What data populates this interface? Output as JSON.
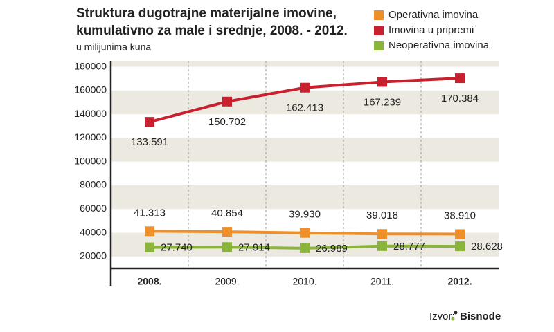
{
  "chart_data": {
    "type": "line",
    "title": [
      "Struktura dugotrajne materijalne imovine,",
      "kumulativno za male i srednje, 2008. - 2012."
    ],
    "subtitle": "u milijunima kuna",
    "categories": [
      "2008.",
      "2009.",
      "2010.",
      "2011.",
      "2012."
    ],
    "series": [
      {
        "name": "Operativna imovina",
        "color": "#ef8f2a",
        "values": [
          41313,
          40854,
          39930,
          39018,
          38910
        ],
        "value_labels": [
          "41.313",
          "40.854",
          "39.930",
          "39.018",
          "38.910"
        ]
      },
      {
        "name": "Imovina u pripremi",
        "color": "#c8202f",
        "values": [
          133591,
          150702,
          162413,
          167239,
          170384
        ],
        "value_labels": [
          "133.591",
          "150.702",
          "162.413",
          "167.239",
          "170.384"
        ]
      },
      {
        "name": "Neoperativna imovina",
        "color": "#8bb43a",
        "values": [
          27740,
          27914,
          26989,
          28777,
          28628
        ],
        "value_labels": [
          "27.740",
          "27.914",
          "26.989",
          "28.777",
          "28.628"
        ]
      }
    ],
    "ylim": [
      10000,
      185000
    ],
    "yticks": [
      20000,
      40000,
      60000,
      80000,
      100000,
      120000,
      140000,
      160000,
      180000
    ],
    "grid": true,
    "legend": "top-right",
    "source_label": "Izvor:",
    "source": "Bisnode"
  }
}
